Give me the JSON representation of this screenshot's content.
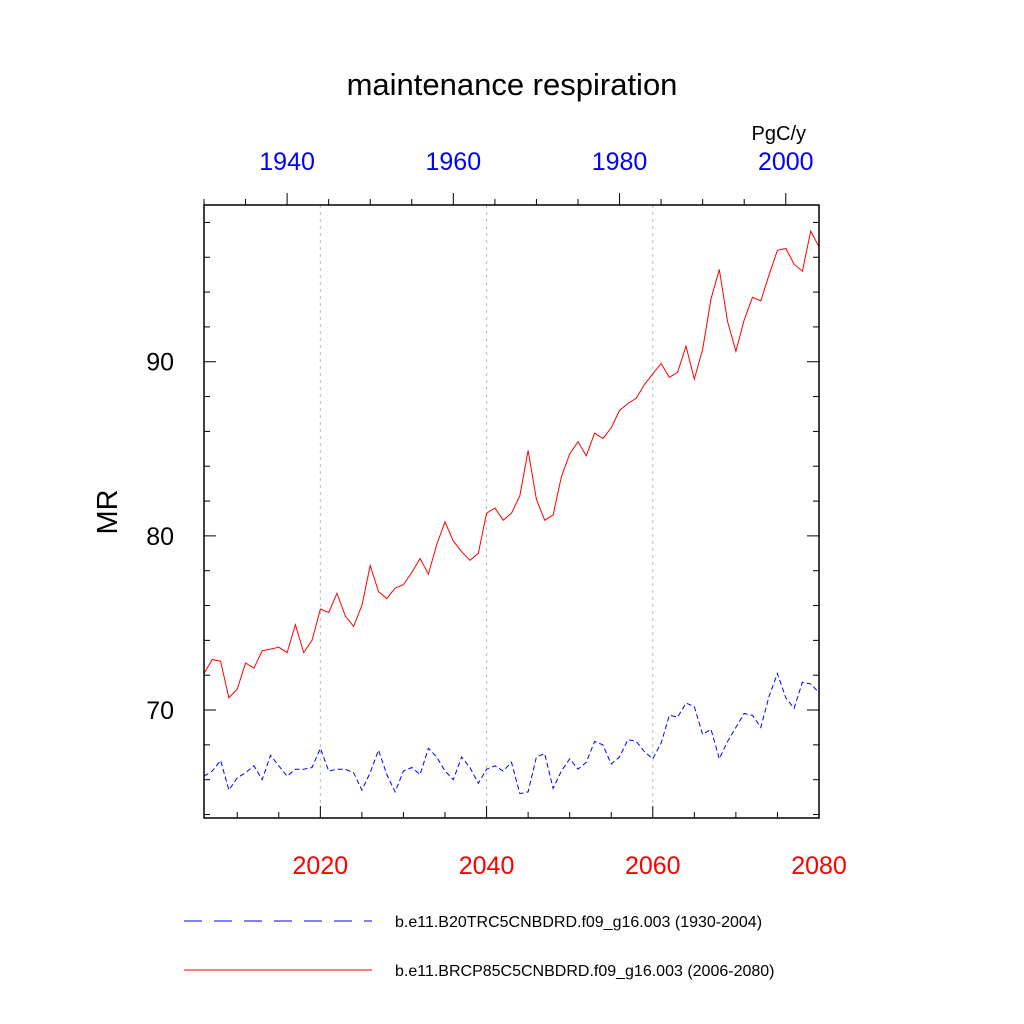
{
  "chart_data": {
    "type": "line",
    "title": "maintenance respiration",
    "units": "PgC/y",
    "ylabel": "MR",
    "ylim": [
      63.8,
      99
    ],
    "yticks": [
      70,
      80,
      90
    ],
    "grid": "vertical dashed lines at labeled x ticks",
    "bottom_axis": {
      "color": "#ff0000",
      "range": [
        2006,
        2080
      ],
      "ticks": [
        2020,
        2040,
        2060,
        2080
      ],
      "tick_labels": [
        "2020",
        "2040",
        "2060",
        "2080"
      ]
    },
    "top_axis": {
      "color": "#0000ff",
      "range": [
        1930,
        2004
      ],
      "ticks": [
        1940,
        1960,
        1980,
        2000
      ],
      "tick_labels": [
        "1940",
        "1960",
        "1980",
        "2000"
      ]
    },
    "legend_position": "bottom",
    "series": [
      {
        "name": "b.e11.B20TRC5CNBDRD.f09_g16.003 (1930-2004)",
        "axis": "top",
        "color": "#0000ff",
        "dash": "dashed",
        "x": [
          1930,
          1931,
          1932,
          1933,
          1934,
          1935,
          1936,
          1937,
          1938,
          1939,
          1940,
          1941,
          1942,
          1943,
          1944,
          1945,
          1946,
          1947,
          1948,
          1949,
          1950,
          1951,
          1952,
          1953,
          1954,
          1955,
          1956,
          1957,
          1958,
          1959,
          1960,
          1961,
          1962,
          1963,
          1964,
          1965,
          1966,
          1967,
          1968,
          1969,
          1970,
          1971,
          1972,
          1973,
          1974,
          1975,
          1976,
          1977,
          1978,
          1979,
          1980,
          1981,
          1982,
          1983,
          1984,
          1985,
          1986,
          1987,
          1988,
          1989,
          1990,
          1991,
          1992,
          1993,
          1994,
          1995,
          1996,
          1997,
          1998,
          1999,
          2000,
          2001,
          2002,
          2003,
          2004
        ],
        "y": [
          66.2,
          66.5,
          67.1,
          65.4,
          66.1,
          66.4,
          66.8,
          66.0,
          67.4,
          66.8,
          66.2,
          66.6,
          66.6,
          66.7,
          67.8,
          66.5,
          66.6,
          66.6,
          66.4,
          65.4,
          66.4,
          67.7,
          66.3,
          65.3,
          66.5,
          66.7,
          66.3,
          67.8,
          67.3,
          66.5,
          66.0,
          67.3,
          66.7,
          65.8,
          66.6,
          66.8,
          66.5,
          67.0,
          65.2,
          65.3,
          67.3,
          67.5,
          65.5,
          66.5,
          67.2,
          66.6,
          67.0,
          68.2,
          68.0,
          66.9,
          67.3,
          68.3,
          68.2,
          67.6,
          67.2,
          68.1,
          69.7,
          69.6,
          70.4,
          70.2,
          68.6,
          68.9,
          67.2,
          68.2,
          69.0,
          69.8,
          69.7,
          69.0,
          70.8,
          72.1,
          70.7,
          70.1,
          71.6,
          71.5,
          71.0
        ]
      },
      {
        "name": "b.e11.BRCP85C5CNBDRD.f09_g16.003 (2006-2080)",
        "axis": "bottom",
        "color": "#ff0000",
        "dash": "solid",
        "x": [
          2006,
          2007,
          2008,
          2009,
          2010,
          2011,
          2012,
          2013,
          2014,
          2015,
          2016,
          2017,
          2018,
          2019,
          2020,
          2021,
          2022,
          2023,
          2024,
          2025,
          2026,
          2027,
          2028,
          2029,
          2030,
          2031,
          2032,
          2033,
          2034,
          2035,
          2036,
          2037,
          2038,
          2039,
          2040,
          2041,
          2042,
          2043,
          2044,
          2045,
          2046,
          2047,
          2048,
          2049,
          2050,
          2051,
          2052,
          2053,
          2054,
          2055,
          2056,
          2057,
          2058,
          2059,
          2060,
          2061,
          2062,
          2063,
          2064,
          2065,
          2066,
          2067,
          2068,
          2069,
          2070,
          2071,
          2072,
          2073,
          2074,
          2075,
          2076,
          2077,
          2078,
          2079,
          2080
        ],
        "y": [
          72.1,
          72.9,
          72.8,
          70.7,
          71.2,
          72.7,
          72.4,
          73.4,
          73.5,
          73.6,
          73.3,
          74.9,
          73.3,
          74.0,
          75.8,
          75.6,
          76.7,
          75.4,
          74.8,
          76.0,
          78.3,
          76.8,
          76.4,
          77.0,
          77.2,
          77.9,
          78.7,
          77.8,
          79.5,
          80.8,
          79.7,
          79.1,
          78.6,
          79.0,
          81.3,
          81.6,
          80.9,
          81.3,
          82.3,
          84.9,
          82.1,
          80.9,
          81.2,
          83.4,
          84.7,
          85.4,
          84.6,
          85.9,
          85.6,
          86.2,
          87.2,
          87.6,
          87.9,
          88.7,
          89.3,
          89.9,
          89.1,
          89.4,
          90.9,
          89.0,
          90.7,
          93.6,
          95.3,
          92.3,
          90.6,
          92.4,
          93.7,
          93.5,
          95.0,
          96.4,
          96.5,
          95.6,
          95.2,
          97.5,
          96.6
        ]
      }
    ]
  }
}
